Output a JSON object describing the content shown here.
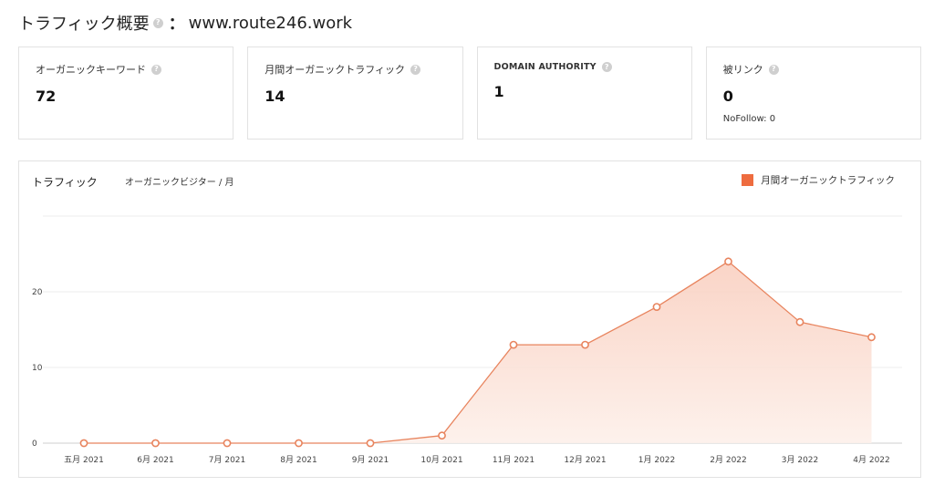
{
  "header": {
    "title": "トラフィック概要",
    "separator": "：",
    "domain": "www.route246.work"
  },
  "cards": [
    {
      "label": "オーガニックキーワード",
      "value": "72",
      "sub": ""
    },
    {
      "label": "月間オーガニックトラフィック",
      "value": "14",
      "sub": ""
    },
    {
      "label": "DOMAIN AUTHORITY",
      "value": "1",
      "sub": ""
    },
    {
      "label": "被リンク",
      "value": "0",
      "sub": "NoFollow: 0"
    }
  ],
  "help_icon_glyph": "?",
  "chart": {
    "title": "トラフィック",
    "subtitle": "オーガニックビジター / 月"
  },
  "colors": {
    "accent": "#ee6c3f",
    "line": "#e8845e",
    "fill_top": "#f9cdbd",
    "fill_bottom": "#fdf0ea"
  },
  "chart_data": {
    "type": "area",
    "categories": [
      "五月 2021",
      "6月 2021",
      "7月 2021",
      "8月 2021",
      "9月 2021",
      "10月 2021",
      "11月 2021",
      "12月 2021",
      "1月 2022",
      "2月 2022",
      "3月 2022",
      "4月 2022"
    ],
    "series": [
      {
        "name": "月間オーガニックトラフィック",
        "values": [
          0,
          0,
          0,
          0,
          0,
          1,
          13,
          13,
          18,
          24,
          16,
          14
        ]
      }
    ],
    "yticks": [
      0,
      10,
      20
    ],
    "ylim": [
      0,
      30
    ],
    "legend_position": "top-right",
    "grid": true
  }
}
